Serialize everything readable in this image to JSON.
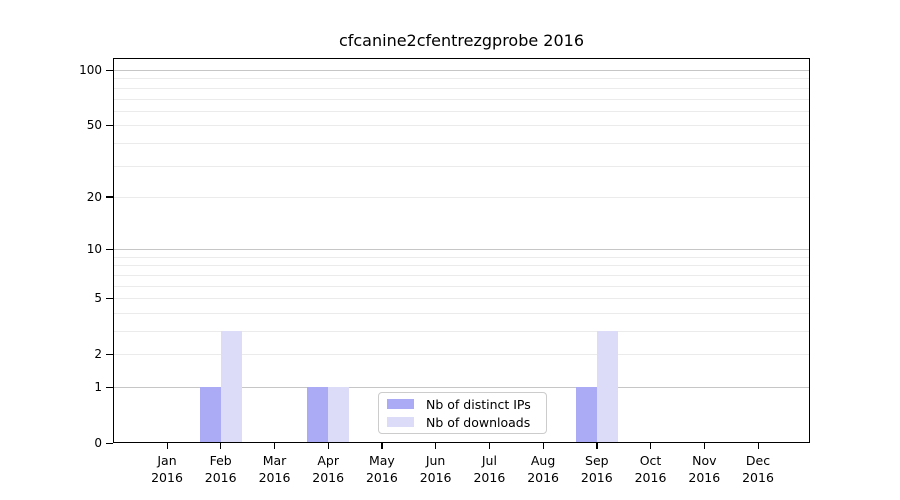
{
  "title": "cfcanine2cfentrezgprobe 2016",
  "chart_data": {
    "type": "bar",
    "title": "cfcanine2cfentrezgprobe 2016",
    "categories": [
      "Jan",
      "Feb",
      "Mar",
      "Apr",
      "May",
      "Jun",
      "Jul",
      "Aug",
      "Sep",
      "Oct",
      "Nov",
      "Dec"
    ],
    "category_year": "2016",
    "series": [
      {
        "name": "Nb of distinct IPs",
        "color": "#aaaaf5",
        "values": [
          0,
          1,
          0,
          1,
          0,
          0,
          0,
          0,
          1,
          0,
          0,
          0
        ]
      },
      {
        "name": "Nb of downloads",
        "color": "#dcdcf8",
        "values": [
          0,
          3,
          0,
          1,
          0,
          0,
          0,
          0,
          3,
          0,
          0,
          0
        ]
      }
    ],
    "y_axis": {
      "scale": "log10(1+v)",
      "tick_values": [
        0,
        1,
        2,
        5,
        10,
        20,
        50,
        100
      ],
      "major_grid_values": [
        1,
        10,
        100
      ],
      "minor_grid_values": [
        2,
        3,
        4,
        5,
        6,
        7,
        8,
        9,
        20,
        30,
        40,
        50,
        60,
        70,
        80,
        90
      ],
      "range_min": 0,
      "range_max": 100
    },
    "legend": {
      "position": "bottom-center",
      "entries": [
        "Nb of distinct IPs",
        "Nb of downloads"
      ]
    },
    "colors": {
      "major_grid": "#c6c6c6",
      "minor_grid": "#ebebeb",
      "spine": "#000000",
      "background": "#ffffff",
      "text": "#000000"
    },
    "grid": true
  }
}
